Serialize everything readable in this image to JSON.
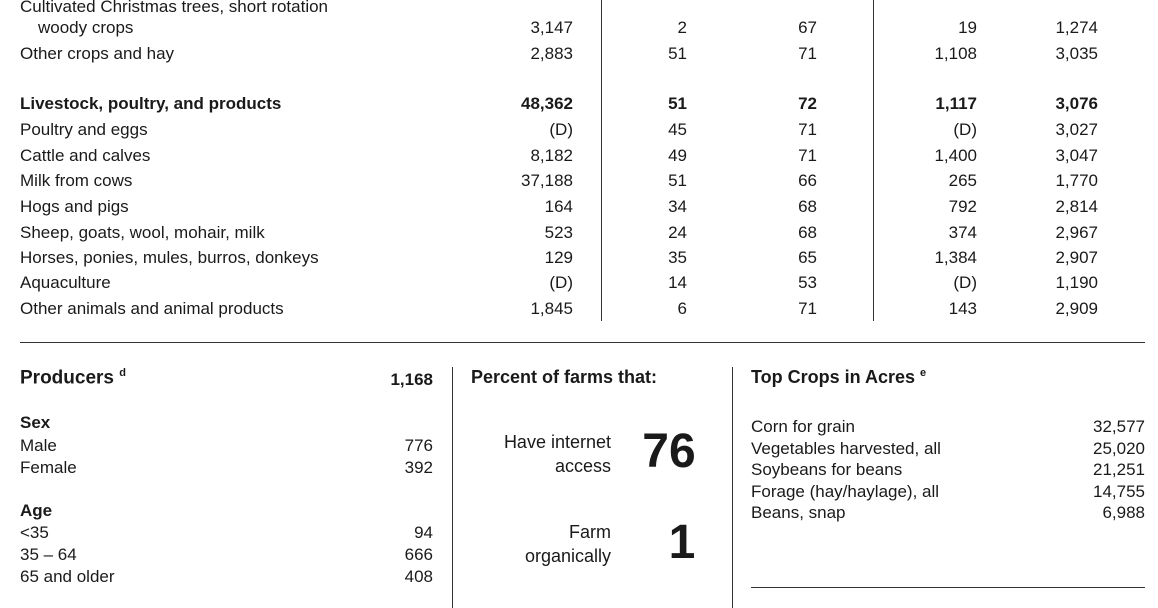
{
  "table": {
    "rows": [
      {
        "label_lines": [
          "Cultivated Christmas trees, short rotation",
          "woody crops"
        ],
        "c1": "3,147",
        "c2": "2",
        "c3": "67",
        "c4": "19",
        "c5": "1,274",
        "bold": false
      },
      {
        "label": "Other crops and hay",
        "c1": "2,883",
        "c2": "51",
        "c3": "71",
        "c4": "1,108",
        "c5": "3,035",
        "bold": false
      },
      {
        "label": "Livestock, poultry, and products",
        "c1": "48,362",
        "c2": "51",
        "c3": "72",
        "c4": "1,117",
        "c5": "3,076",
        "bold": true
      },
      {
        "label": "Poultry and eggs",
        "c1": "(D)",
        "c2": "45",
        "c3": "71",
        "c4": "(D)",
        "c5": "3,027",
        "bold": false
      },
      {
        "label": "Cattle and calves",
        "c1": "8,182",
        "c2": "49",
        "c3": "71",
        "c4": "1,400",
        "c5": "3,047",
        "bold": false
      },
      {
        "label": "Milk from cows",
        "c1": "37,188",
        "c2": "51",
        "c3": "66",
        "c4": "265",
        "c5": "1,770",
        "bold": false
      },
      {
        "label": "Hogs and pigs",
        "c1": "164",
        "c2": "34",
        "c3": "68",
        "c4": "792",
        "c5": "2,814",
        "bold": false
      },
      {
        "label": "Sheep, goats, wool, mohair, milk",
        "c1": "523",
        "c2": "24",
        "c3": "68",
        "c4": "374",
        "c5": "2,967",
        "bold": false
      },
      {
        "label": "Horses, ponies, mules, burros, donkeys",
        "c1": "129",
        "c2": "35",
        "c3": "65",
        "c4": "1,384",
        "c5": "2,907",
        "bold": false
      },
      {
        "label": "Aquaculture",
        "c1": "(D)",
        "c2": "14",
        "c3": "53",
        "c4": "(D)",
        "c5": "1,190",
        "bold": false
      },
      {
        "label": "Other animals and animal products",
        "c1": "1,845",
        "c2": "6",
        "c3": "71",
        "c4": "143",
        "c5": "2,909",
        "bold": false
      }
    ]
  },
  "producers": {
    "title": "Producers",
    "title_sup": "d",
    "total": "1,168",
    "sex_heading": "Sex",
    "sex": [
      {
        "label": "Male",
        "value": "776"
      },
      {
        "label": "Female",
        "value": "392"
      }
    ],
    "age_heading": "Age",
    "age": [
      {
        "label": "<35",
        "value": "94"
      },
      {
        "label": "35 – 64",
        "value": "666"
      },
      {
        "label": "65 and older",
        "value": "408"
      }
    ]
  },
  "percent": {
    "title": "Percent of farms that:",
    "internet_line1": "Have internet",
    "internet_line2": "access",
    "internet_value": "76",
    "organic_line1": "Farm",
    "organic_line2": "organically",
    "organic_value": "1"
  },
  "top_crops": {
    "title": "Top Crops in Acres",
    "title_sup": "e",
    "items": [
      {
        "label": "Corn for grain",
        "value": "32,577"
      },
      {
        "label": "Vegetables harvested, all",
        "value": "25,020"
      },
      {
        "label": "Soybeans for beans",
        "value": "21,251"
      },
      {
        "label": "Forage (hay/haylage), all",
        "value": "14,755"
      },
      {
        "label": "Beans, snap",
        "value": "6,988"
      }
    ]
  }
}
